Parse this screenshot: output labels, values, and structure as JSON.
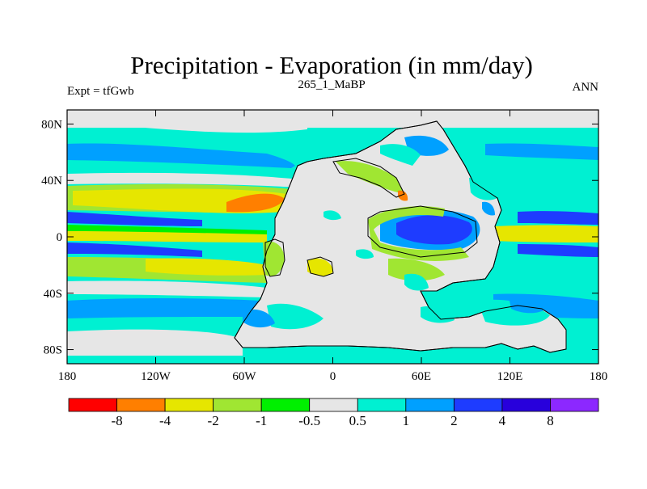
{
  "chart_data": {
    "type": "heatmap",
    "title": "Precipitation - Evaporation (in mm/day)",
    "subtitle_left": "Expt = tfGwb",
    "subtitle_center": "265_1_MaBP",
    "subtitle_right": "ANN",
    "x_ticks": [
      "180",
      "120W",
      "60W",
      "0",
      "60E",
      "120E",
      "180"
    ],
    "x_tick_values": [
      -180,
      -120,
      -60,
      0,
      60,
      120,
      180
    ],
    "y_ticks": [
      "80N",
      "40N",
      "0",
      "40S",
      "80S"
    ],
    "y_tick_values": [
      80,
      40,
      0,
      -40,
      -80
    ],
    "xlim": [
      -180,
      180
    ],
    "ylim": [
      -90,
      90
    ],
    "colorbar": {
      "labels": [
        "-8",
        "-4",
        "-2",
        "-1",
        "-0.5",
        "0.5",
        "1",
        "2",
        "4",
        "8"
      ],
      "colors": [
        "#ff0000",
        "#ff7f00",
        "#e6e600",
        "#a0e632",
        "#00f000",
        "#e6e6e6",
        "#00f0d2",
        "#00a0ff",
        "#1e3cff",
        "#2800dc",
        "#8c28ff"
      ]
    }
  }
}
